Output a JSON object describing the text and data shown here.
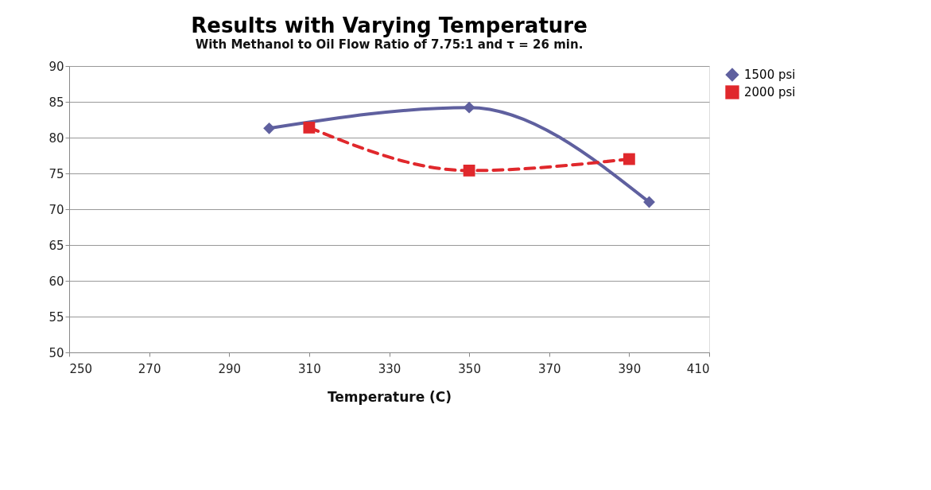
{
  "chart_data": {
    "type": "line",
    "title": "Results with Varying Temperature",
    "subtitle": "With Methanol to Oil Flow Ratio of 7.75:1 and τ = 26 min.",
    "xlabel": "Temperature (C)",
    "xlim": [
      250,
      410
    ],
    "xticks": [
      250,
      270,
      290,
      310,
      330,
      350,
      370,
      390,
      410
    ],
    "ylim": [
      50,
      90
    ],
    "yticks": [
      50,
      55,
      60,
      65,
      70,
      75,
      80,
      85,
      90
    ],
    "grid": "y",
    "legend": "right",
    "series": [
      {
        "name": "1500 psi",
        "color": "#5f609f",
        "x": [
          300,
          350,
          395
        ],
        "values": [
          81.3,
          84.2,
          71.0
        ],
        "marker": "diamond",
        "line_style": "solid"
      },
      {
        "name": "2000 psi",
        "color": "#e0282c",
        "x": [
          310,
          350,
          390
        ],
        "values": [
          81.4,
          75.4,
          77.0
        ],
        "marker": "square",
        "line_style": "dashed"
      }
    ]
  }
}
